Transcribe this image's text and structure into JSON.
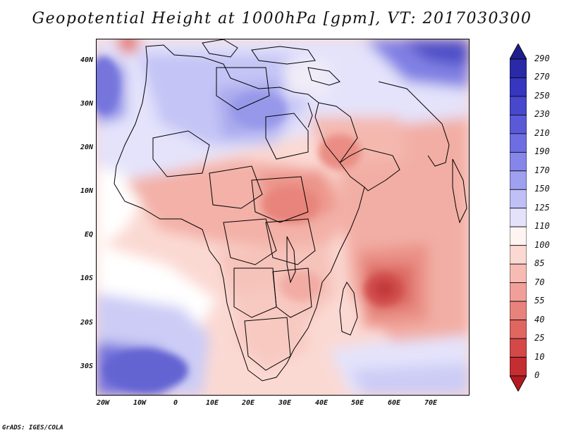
{
  "title": "Geopotential Height at 1000hPa [gpm], VT: 2017030300",
  "footer": "GrADS: IGES/COLA",
  "map": {
    "region": "Africa",
    "variable": "Geopotential Height",
    "level": "1000hPa",
    "units": "gpm",
    "valid_time": "2017030300",
    "lon_range": [
      -23,
      80
    ],
    "lat_range": [
      -37,
      45
    ],
    "x_ticks": [
      "20W",
      "10W",
      "0",
      "10E",
      "20E",
      "30E",
      "40E",
      "50E",
      "60E",
      "70E"
    ],
    "y_ticks": [
      "40N",
      "30N",
      "20N",
      "10N",
      "EQ",
      "10S",
      "20S",
      "30S"
    ],
    "colorbar": {
      "orientation": "vertical",
      "position": "right",
      "labels": [
        "290",
        "270",
        "250",
        "230",
        "210",
        "190",
        "170",
        "150",
        "125",
        "110",
        "100",
        "85",
        "70",
        "55",
        "40",
        "25",
        "10",
        "0"
      ],
      "colors": [
        "#1e1e8c",
        "#2a2aa8",
        "#3636be",
        "#4848cc",
        "#5a5ad8",
        "#6e6ee2",
        "#8686ea",
        "#a0a0f0",
        "#c0c0f6",
        "#e2e2fb",
        "#fff4f0",
        "#fbd8d2",
        "#f6bcb4",
        "#f0a098",
        "#e8837c",
        "#e06660",
        "#d44848",
        "#c42e32",
        "#b01a20"
      ]
    }
  }
}
